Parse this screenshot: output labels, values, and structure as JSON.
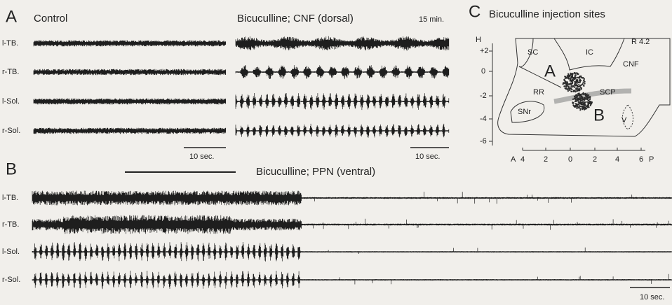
{
  "panel_a": {
    "label": "A",
    "control_title": "Control",
    "drug_title": "Bicuculline;  CNF (dorsal)",
    "time": "15 min.",
    "rows": [
      "l-TB.",
      "r-TB.",
      "l-Sol.",
      "r-Sol."
    ],
    "scale_left": "10 sec.",
    "scale_right": "10 sec."
  },
  "panel_b": {
    "label": "B",
    "title": "Bicuculline; PPN (ventral)",
    "rows": [
      "l-TB.",
      "r-TB.",
      "l-Sol.",
      "r-Sol."
    ],
    "scale": "10 sec."
  },
  "panel_c": {
    "label": "C",
    "title": "Bicuculline injection sites",
    "y_axis_label": "H",
    "y_ticks": [
      "+2",
      "0",
      "-2",
      "-4",
      "-6"
    ],
    "x_ticks": [
      "A",
      "4",
      "2",
      "0",
      "2",
      "4",
      "6",
      "P"
    ],
    "regions": [
      "SC",
      "IC",
      "R 4.2",
      "CNF",
      "A",
      "RR",
      "SCP",
      "SNr",
      "B",
      "V"
    ]
  }
}
